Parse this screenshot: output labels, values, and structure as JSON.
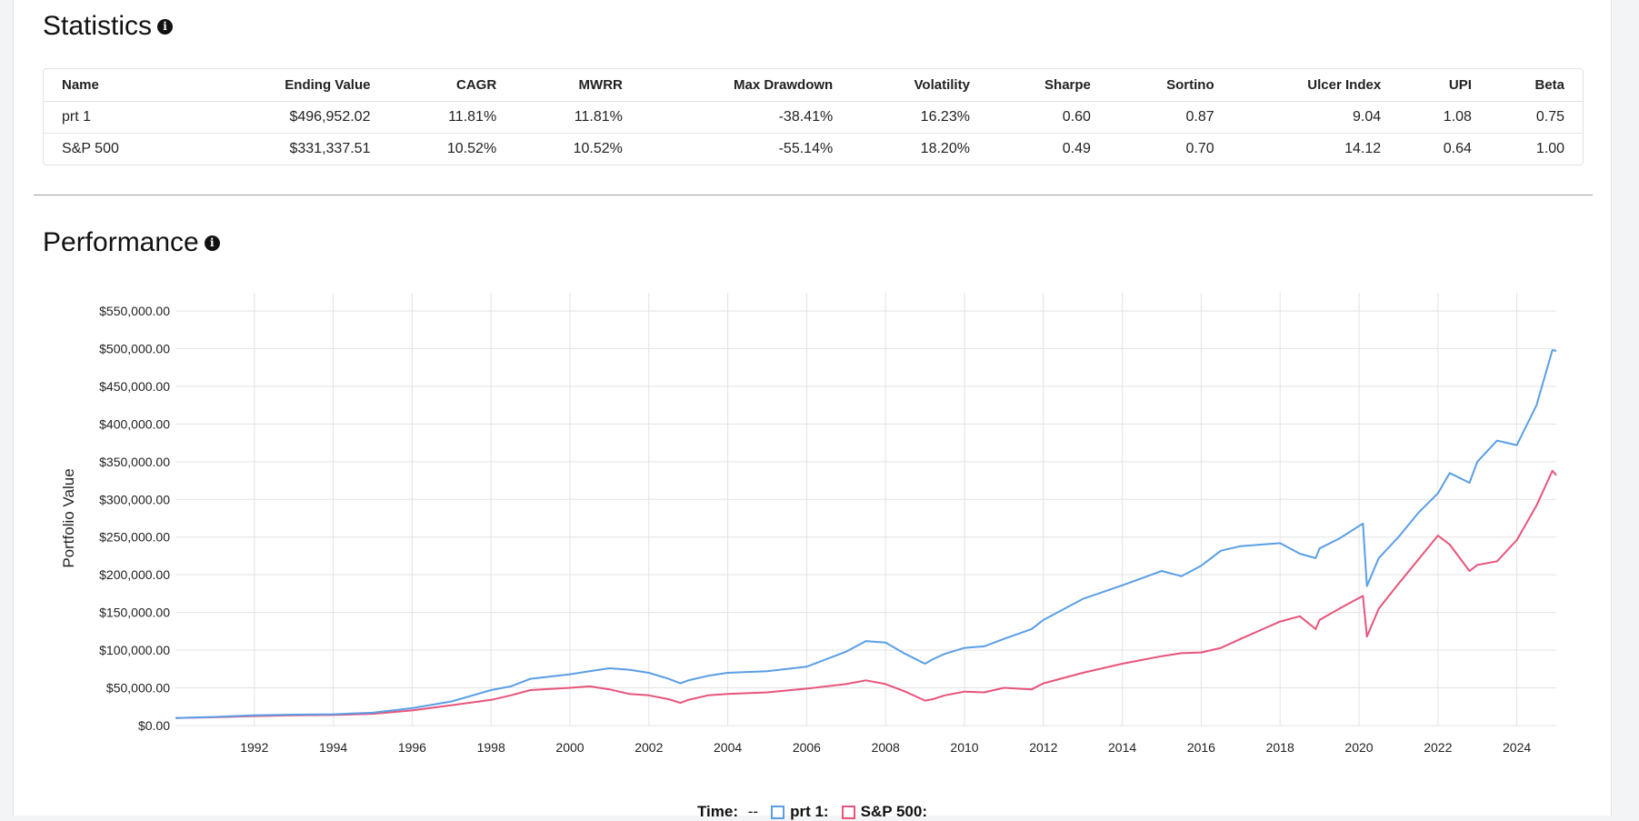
{
  "statistics": {
    "title": "Statistics",
    "info_icon": "info-icon",
    "columns": [
      "Name",
      "Ending Value",
      "CAGR",
      "MWRR",
      "Max Drawdown",
      "Volatility",
      "Sharpe",
      "Sortino",
      "Ulcer Index",
      "UPI",
      "Beta"
    ],
    "rows": [
      [
        "prt 1",
        "$496,952.02",
        "11.81%",
        "11.81%",
        "-38.41%",
        "16.23%",
        "0.60",
        "0.87",
        "9.04",
        "1.08",
        "0.75"
      ],
      [
        "S&P 500",
        "$331,337.51",
        "10.52%",
        "10.52%",
        "-55.14%",
        "18.20%",
        "0.49",
        "0.70",
        "14.12",
        "0.64",
        "1.00"
      ]
    ]
  },
  "performance": {
    "title": "Performance",
    "info_icon": "info-icon"
  },
  "legend": {
    "time_label": "Time:",
    "time_value": "--",
    "items": [
      "prt 1:",
      "S&P 500:"
    ]
  },
  "chart_data": {
    "type": "line",
    "ylabel": "Portfolio Value",
    "xlabel": "",
    "xlim": [
      1990,
      2025
    ],
    "ylim": [
      0,
      550000
    ],
    "y_ticks": [
      "$0.00",
      "$50,000.00",
      "$100,000.00",
      "$150,000.00",
      "$200,000.00",
      "$250,000.00",
      "$300,000.00",
      "$350,000.00",
      "$400,000.00",
      "$450,000.00",
      "$500,000.00",
      "$550,000.00"
    ],
    "x_ticks": [
      "1992",
      "1994",
      "1996",
      "1998",
      "2000",
      "2002",
      "2004",
      "2006",
      "2008",
      "2010",
      "2012",
      "2014",
      "2016",
      "2018",
      "2020",
      "2022",
      "2024"
    ],
    "grid": true,
    "series": [
      {
        "name": "prt 1",
        "color": "#5a9ee6",
        "x": [
          1990,
          1991,
          1992,
          1993,
          1994,
          1995,
          1996,
          1997,
          1998,
          1998.5,
          1999,
          2000,
          2000.5,
          2001,
          2001.5,
          2002,
          2002.5,
          2002.8,
          2003,
          2003.5,
          2004,
          2005,
          2006,
          2007,
          2007.5,
          2008,
          2008.5,
          2009,
          2009.2,
          2009.5,
          2010,
          2010.5,
          2011,
          2011.7,
          2012,
          2013,
          2014,
          2015,
          2015.5,
          2016,
          2016.5,
          2017,
          2018,
          2018.5,
          2018.9,
          2019,
          2019.5,
          2020.1,
          2020.2,
          2020.5,
          2021,
          2021.5,
          2022,
          2022.3,
          2022.8,
          2023,
          2023.5,
          2024,
          2024.5,
          2024.9,
          2025
        ],
        "y": [
          10000,
          11500,
          13500,
          14500,
          15000,
          17000,
          23000,
          32000,
          47000,
          52000,
          62000,
          68000,
          72000,
          76000,
          74000,
          70000,
          62000,
          56000,
          60000,
          66000,
          70000,
          72000,
          78000,
          98000,
          112000,
          110000,
          95000,
          82000,
          88000,
          95000,
          103000,
          105000,
          115000,
          128000,
          140000,
          168000,
          186000,
          205000,
          198000,
          212000,
          232000,
          238000,
          242000,
          228000,
          222000,
          235000,
          248000,
          268000,
          185000,
          222000,
          250000,
          282000,
          308000,
          335000,
          322000,
          350000,
          378000,
          372000,
          425000,
          498000,
          497000
        ]
      },
      {
        "name": "S&P 500",
        "color": "#e8547a",
        "x": [
          1990,
          1991,
          1992,
          1993,
          1994,
          1995,
          1996,
          1997,
          1998,
          1998.5,
          1999,
          2000,
          2000.5,
          2001,
          2001.5,
          2002,
          2002.5,
          2002.8,
          2003,
          2003.5,
          2004,
          2005,
          2006,
          2007,
          2007.5,
          2008,
          2008.5,
          2009,
          2009.2,
          2009.5,
          2010,
          2010.5,
          2011,
          2011.7,
          2012,
          2013,
          2014,
          2015,
          2015.5,
          2016,
          2016.5,
          2017,
          2018,
          2018.5,
          2018.9,
          2019,
          2019.5,
          2020.1,
          2020.2,
          2020.5,
          2021,
          2021.5,
          2022,
          2022.3,
          2022.8,
          2023,
          2023.5,
          2024,
          2024.5,
          2024.9,
          2025
        ],
        "y": [
          10000,
          11000,
          12500,
          13500,
          14000,
          15500,
          20000,
          27000,
          34000,
          40000,
          47000,
          50000,
          52000,
          48000,
          42000,
          40000,
          35000,
          30000,
          34000,
          40000,
          42000,
          44000,
          49000,
          55000,
          60000,
          55000,
          45000,
          33000,
          35000,
          40000,
          45000,
          44000,
          50000,
          48000,
          56000,
          70000,
          82000,
          92000,
          96000,
          97000,
          103000,
          115000,
          138000,
          145000,
          128000,
          140000,
          155000,
          172000,
          118000,
          155000,
          188000,
          220000,
          252000,
          240000,
          205000,
          213000,
          218000,
          246000,
          292000,
          338000,
          332000
        ]
      }
    ]
  }
}
